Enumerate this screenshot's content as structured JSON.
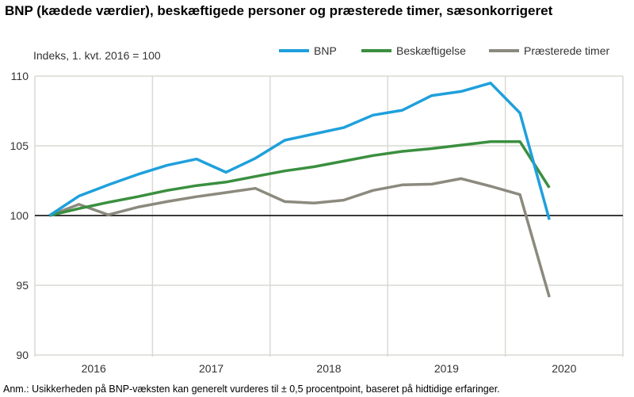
{
  "chart_data": {
    "type": "line",
    "title": "BNP (kædede værdier), beskæftigede personer og præsterede timer, sæsonkorrigeret",
    "ylabel": "Indeks, 1. kvt. 2016  = 100",
    "xlabel": "",
    "ylim": [
      90,
      110
    ],
    "yticks": [
      "90",
      "95",
      "100",
      "105",
      "110"
    ],
    "x_year_labels": [
      "2016",
      "2017",
      "2018",
      "2019",
      "2020"
    ],
    "x": [
      "2016K1",
      "2016K2",
      "2016K3",
      "2016K4",
      "2017K1",
      "2017K2",
      "2017K3",
      "2017K4",
      "2018K1",
      "2018K2",
      "2018K3",
      "2018K4",
      "2019K1",
      "2019K2",
      "2019K3",
      "2019K4",
      "2020K1",
      "2020K2"
    ],
    "grid": true,
    "legend": "top-right",
    "reference_line": 100,
    "series": [
      {
        "name": "BNP",
        "color": "#1fa0dc",
        "values": [
          100,
          101.4,
          102.2,
          102.95,
          103.6,
          104.05,
          103.1,
          104.1,
          105.4,
          105.85,
          106.3,
          107.2,
          107.55,
          108.6,
          108.9,
          109.5,
          107.35,
          99.7
        ]
      },
      {
        "name": "Beskæftigelse",
        "color": "#3a8f3f",
        "values": [
          100,
          100.5,
          100.95,
          101.35,
          101.8,
          102.15,
          102.4,
          102.8,
          103.2,
          103.5,
          103.9,
          104.3,
          104.6,
          104.8,
          105.05,
          105.3,
          105.3,
          102.0
        ]
      },
      {
        "name": "Præsterede timer",
        "color": "#8c8a7e",
        "values": [
          100,
          100.8,
          100.05,
          100.6,
          101.0,
          101.35,
          101.65,
          101.95,
          101.0,
          100.9,
          101.1,
          101.8,
          102.2,
          102.25,
          102.65,
          102.1,
          101.5,
          94.15
        ]
      }
    ]
  },
  "note": "Anm.: Usikkerheden på BNP-væksten kan generelt vurderes til ± 0,5 procentpoint, baseret på hidtidige erfaringer."
}
